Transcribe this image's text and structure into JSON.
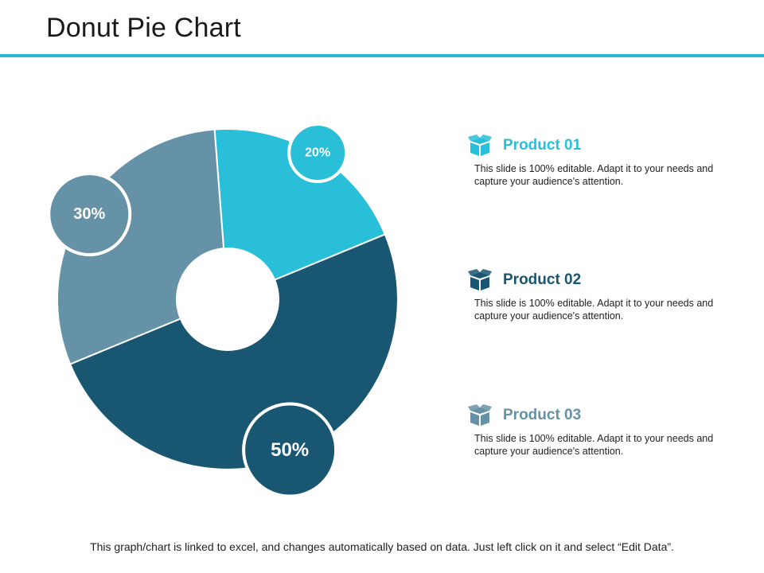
{
  "title": "Donut Pie Chart",
  "colors": {
    "rule": "#29B8D3",
    "product_01": "#29BFD9",
    "product_02": "#185672",
    "product_03": "#6592A6"
  },
  "chart_data": {
    "type": "pie",
    "variant": "donut",
    "labels": [
      "Product 01",
      "Product 02",
      "Product 03"
    ],
    "values": [
      20,
      50,
      30
    ],
    "value_labels": [
      "20%",
      "50%",
      "30%"
    ],
    "units": "%"
  },
  "products": [
    {
      "name": "Product 01",
      "icon": "box-icon",
      "description": "This slide is 100% editable. Adapt it to your needs and capture your audience's attention."
    },
    {
      "name": "Product 02",
      "icon": "box-icon",
      "description": "This slide is 100% editable. Adapt it to your needs and capture your audience's attention."
    },
    {
      "name": "Product 03",
      "icon": "box-icon",
      "description": "This slide is 100% editable. Adapt it to your needs and capture your audience's attention."
    }
  ],
  "footer": "This graph/chart is linked to excel, and changes automatically  based on data. Just left click on it and select “Edit Data”."
}
